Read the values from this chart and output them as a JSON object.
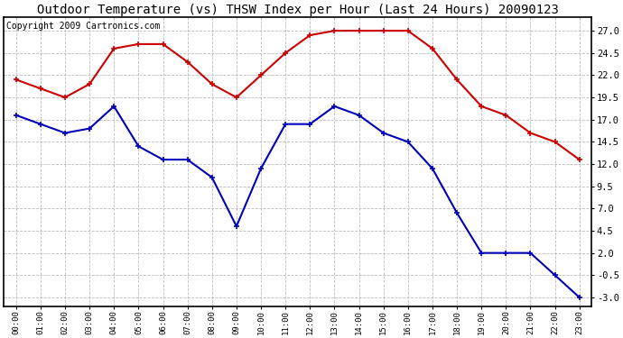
{
  "title": "Outdoor Temperature (vs) THSW Index per Hour (Last 24 Hours) 20090123",
  "copyright": "Copyright 2009 Cartronics.com",
  "hours": [
    "00:00",
    "01:00",
    "02:00",
    "03:00",
    "04:00",
    "05:00",
    "06:00",
    "07:00",
    "08:00",
    "09:00",
    "10:00",
    "11:00",
    "12:00",
    "13:00",
    "14:00",
    "15:00",
    "16:00",
    "17:00",
    "18:00",
    "19:00",
    "20:00",
    "21:00",
    "22:00",
    "23:00"
  ],
  "blue_temp": [
    17.5,
    16.5,
    15.5,
    16.0,
    18.5,
    14.0,
    12.5,
    12.5,
    10.5,
    5.0,
    11.5,
    16.5,
    16.5,
    18.5,
    17.5,
    15.5,
    14.5,
    11.5,
    6.5,
    2.0,
    2.0,
    2.0,
    -0.5,
    -3.0
  ],
  "red_thsw": [
    21.5,
    20.5,
    19.5,
    21.0,
    25.0,
    25.5,
    25.5,
    23.5,
    21.0,
    19.5,
    22.0,
    24.5,
    26.5,
    27.0,
    27.0,
    27.0,
    27.0,
    25.0,
    21.5,
    18.5,
    17.5,
    15.5,
    14.5,
    12.5
  ],
  "ylim": [
    -4.0,
    28.5
  ],
  "yticks": [
    -3.0,
    -0.5,
    2.0,
    4.5,
    7.0,
    9.5,
    12.0,
    14.5,
    17.0,
    19.5,
    22.0,
    24.5,
    27.0
  ],
  "blue_color": "#0000bb",
  "red_color": "#cc0000",
  "bg_color": "#ffffff",
  "grid_color": "#bbbbbb",
  "title_fontsize": 10,
  "copyright_fontsize": 7
}
